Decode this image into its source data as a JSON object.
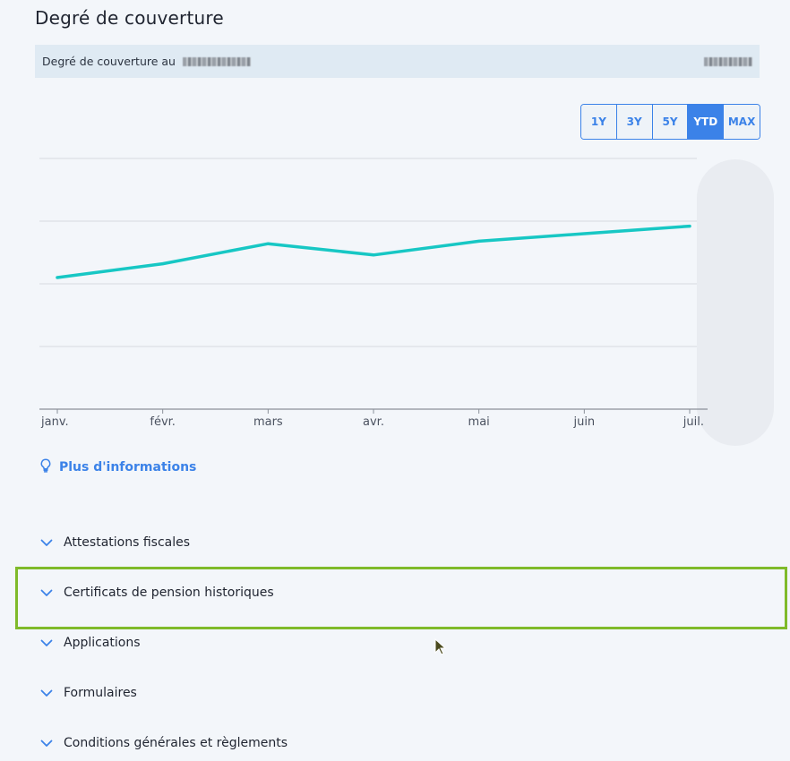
{
  "page": {
    "title": "Degré de couverture"
  },
  "info_bar": {
    "label": "Degré de couverture au"
  },
  "range_selector": {
    "options": [
      "1Y",
      "3Y",
      "5Y",
      "YTD",
      "MAX"
    ],
    "selected": "YTD"
  },
  "chart_data": {
    "type": "line",
    "categories": [
      "janv.",
      "févr.",
      "mars",
      "avr.",
      "mai",
      "juin",
      "juil."
    ],
    "series": [
      {
        "values": [
          100.5,
          101.6,
          103.2,
          102.3,
          103.4,
          104.0,
          104.6
        ]
      }
    ],
    "ylim": [
      90,
      110
    ],
    "grid": true,
    "line_color": "#17c7c4"
  },
  "more_info": {
    "label": "Plus d'informations",
    "icon": "lightbulb-icon"
  },
  "accordion": {
    "items": [
      {
        "label": "Attestations fiscales",
        "icon": "chevron-down-icon"
      },
      {
        "label": "Certificats de pension historiques",
        "icon": "chevron-down-icon"
      },
      {
        "label": "Applications",
        "icon": "chevron-down-icon"
      },
      {
        "label": "Formulaires",
        "icon": "chevron-down-icon"
      },
      {
        "label": "Conditions générales et règlements",
        "icon": "chevron-down-icon"
      }
    ]
  },
  "colors": {
    "accent": "#3b82e8",
    "highlight": "#7fba2a",
    "line": "#17c7c4"
  }
}
